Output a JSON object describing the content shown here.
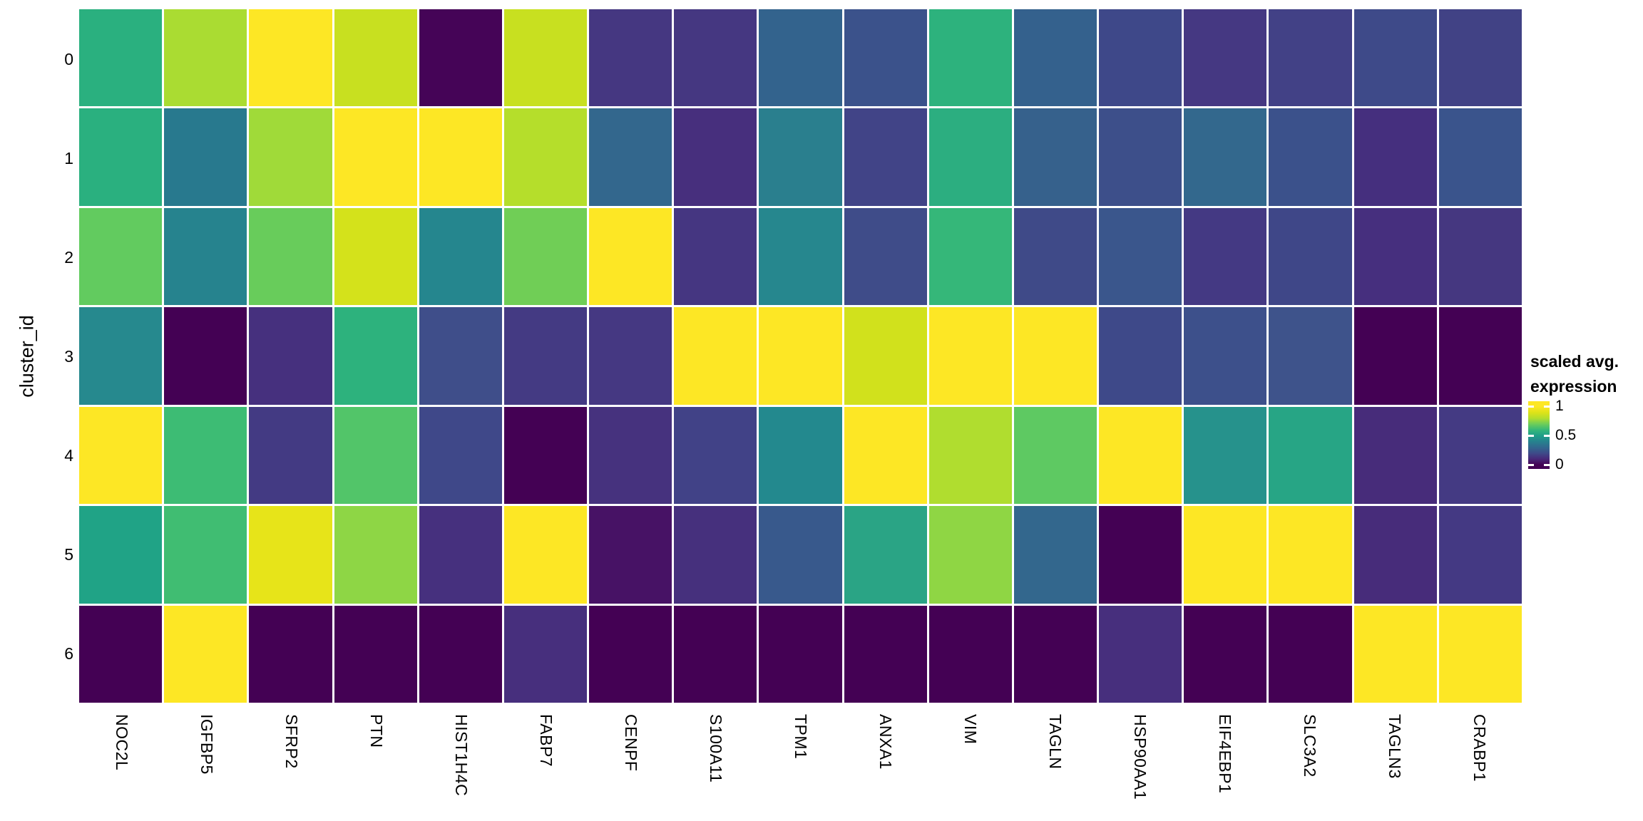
{
  "figure": {
    "background": "#ffffff",
    "y_axis_title": "cluster_id",
    "legend": {
      "title_line1": "scaled avg.",
      "title_line2": "expression",
      "ticks": [
        {
          "label": "1",
          "value": 1
        },
        {
          "label": "0.5",
          "value": 0.5
        },
        {
          "label": "0",
          "value": 0
        }
      ],
      "gradient_stops": [
        {
          "value": 0.0,
          "color": "#440154"
        },
        {
          "value": 0.1,
          "color": "#482878"
        },
        {
          "value": 0.2,
          "color": "#3e4a89"
        },
        {
          "value": 0.3,
          "color": "#31688e"
        },
        {
          "value": 0.4,
          "color": "#26828e"
        },
        {
          "value": 0.5,
          "color": "#1f9e89"
        },
        {
          "value": 0.6,
          "color": "#35b779"
        },
        {
          "value": 0.7,
          "color": "#6dcd59"
        },
        {
          "value": 0.8,
          "color": "#b4de2c"
        },
        {
          "value": 0.9,
          "color": "#dfe318"
        },
        {
          "value": 1.0,
          "color": "#fde725"
        }
      ]
    }
  },
  "chart_data": {
    "type": "heatmap",
    "title": "",
    "xlabel": "",
    "ylabel": "cluster_id",
    "legend_title": "scaled avg. expression",
    "legend_position": "right",
    "colormap": "viridis",
    "color_domain": [
      0,
      1
    ],
    "grid": false,
    "x": [
      "NOC2L",
      "IGFBP5",
      "SFRP2",
      "PTN",
      "HIST1H4C",
      "FABP7",
      "CENPF",
      "S100A11",
      "TPM1",
      "ANXA1",
      "VIM",
      "TAGLN",
      "HSP90AA1",
      "EIF4EBP1",
      "SLC3A2",
      "TAGLN3",
      "CRABP1"
    ],
    "y": [
      "0",
      "1",
      "2",
      "3",
      "4",
      "5",
      "6"
    ],
    "values": [
      [
        0.63,
        0.83,
        1.0,
        0.88,
        0.01,
        0.88,
        0.16,
        0.16,
        0.36,
        0.3,
        0.64,
        0.36,
        0.24,
        0.17,
        0.22,
        0.25,
        0.22
      ],
      [
        0.63,
        0.44,
        0.81,
        1.0,
        1.0,
        0.84,
        0.37,
        0.12,
        0.43,
        0.23,
        0.62,
        0.35,
        0.27,
        0.38,
        0.29,
        0.12,
        0.3
      ],
      [
        0.73,
        0.46,
        0.75,
        0.91,
        0.47,
        0.76,
        1.0,
        0.15,
        0.48,
        0.26,
        0.65,
        0.25,
        0.31,
        0.18,
        0.24,
        0.12,
        0.15
      ],
      [
        0.5,
        0.0,
        0.12,
        0.63,
        0.27,
        0.19,
        0.17,
        1.0,
        1.0,
        0.9,
        1.0,
        1.0,
        0.25,
        0.28,
        0.29,
        0.0,
        0.0
      ],
      [
        1.0,
        0.67,
        0.19,
        0.71,
        0.24,
        0.0,
        0.13,
        0.22,
        0.48,
        1.0,
        0.85,
        0.73,
        1.0,
        0.53,
        0.58,
        0.11,
        0.18
      ],
      [
        0.57,
        0.68,
        0.94,
        0.79,
        0.12,
        1.0,
        0.04,
        0.12,
        0.32,
        0.58,
        0.79,
        0.37,
        0.0,
        1.0,
        1.0,
        0.11,
        0.18
      ],
      [
        0.0,
        1.0,
        0.0,
        0.0,
        0.0,
        0.12,
        0.0,
        0.0,
        0.0,
        0.0,
        0.0,
        0.0,
        0.12,
        0.0,
        0.0,
        1.0,
        1.0
      ]
    ],
    "cell_colors": [
      [
        "#2ab07f",
        "#aadc32",
        "#fde725",
        "#c8e020",
        "#450457",
        "#c8e020",
        "#453781",
        "#453781",
        "#33638d",
        "#3b528b",
        "#2db27d",
        "#34618d",
        "#3e4889",
        "#453882",
        "#424186",
        "#3e4a89",
        "#414285"
      ],
      [
        "#2ab07f",
        "#28798e",
        "#a0da39",
        "#fde725",
        "#fde725",
        "#b5de2b",
        "#33678d",
        "#472f7d",
        "#2a7f8e",
        "#414487",
        "#2cae80",
        "#36618c",
        "#3d4f8a",
        "#33688d",
        "#3b518b",
        "#452f7e",
        "#3a548c"
      ],
      [
        "#62cb5f",
        "#26838e",
        "#68cc5b",
        "#d4e21b",
        "#25868e",
        "#70ce56",
        "#fde725",
        "#453681",
        "#26878e",
        "#3f4c89",
        "#35b779",
        "#3f4a88",
        "#3a568c",
        "#443983",
        "#3f4788",
        "#462f7e",
        "#453780"
      ],
      [
        "#26898e",
        "#440154",
        "#46307e",
        "#2db27d",
        "#3f4e8a",
        "#443a83",
        "#453882",
        "#fde725",
        "#fde725",
        "#d1e11c",
        "#fde725",
        "#fde725",
        "#3e4989",
        "#3d508b",
        "#3e538b",
        "#440154",
        "#440154"
      ],
      [
        "#fde725",
        "#3dbc74",
        "#433a83",
        "#52c569",
        "#3f4889",
        "#440154",
        "#46327e",
        "#414287",
        "#23898e",
        "#fde725",
        "#b0dd2f",
        "#5ec962",
        "#fde725",
        "#26928c",
        "#27a585",
        "#472c7a",
        "#443a83"
      ],
      [
        "#20a386",
        "#40bd72",
        "#e7e419",
        "#8ed645",
        "#46307e",
        "#fde725",
        "#471265",
        "#46307d",
        "#38598c",
        "#2aa485",
        "#8fd644",
        "#33678d",
        "#440154",
        "#fde725",
        "#fde725",
        "#472c7a",
        "#443983"
      ],
      [
        "#440154",
        "#fde725",
        "#440154",
        "#440154",
        "#440154",
        "#472f7d",
        "#440154",
        "#440154",
        "#440154",
        "#440154",
        "#440154",
        "#440154",
        "#472f7d",
        "#440154",
        "#440154",
        "#fde725",
        "#fde725"
      ]
    ]
  }
}
